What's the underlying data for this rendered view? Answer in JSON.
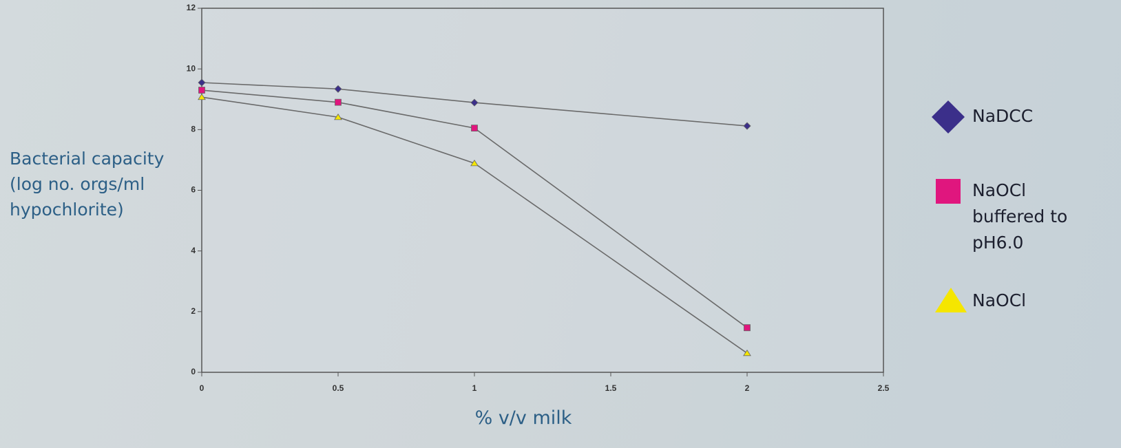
{
  "chart_data": {
    "type": "line",
    "x_label": "% v/v milk",
    "y_label": "Bacterial capacity (log no. orgs/ml hypochlorite)",
    "x": [
      0,
      0.5,
      1,
      2
    ],
    "series": [
      {
        "name": "NaDCC",
        "color": "#3b2f8a",
        "marker": "diamond",
        "values": [
          9.55,
          9.34,
          8.89,
          8.12
        ]
      },
      {
        "name": "NaOCl buffered to pH6.0",
        "color": "#e0167e",
        "marker": "square",
        "values": [
          9.3,
          8.9,
          8.05,
          1.47
        ]
      },
      {
        "name": "NaOCl",
        "color": "#f5e600",
        "marker": "triangle",
        "values": [
          9.07,
          8.41,
          6.89,
          0.63
        ]
      }
    ],
    "xlim": [
      0,
      2.5
    ],
    "xticks": [
      0,
      0.5,
      1,
      1.5,
      2,
      2.5
    ],
    "ylim": [
      0,
      12
    ],
    "yticks": [
      0,
      2,
      4,
      6,
      8,
      10,
      12
    ],
    "grid": false,
    "legend": "right"
  }
}
